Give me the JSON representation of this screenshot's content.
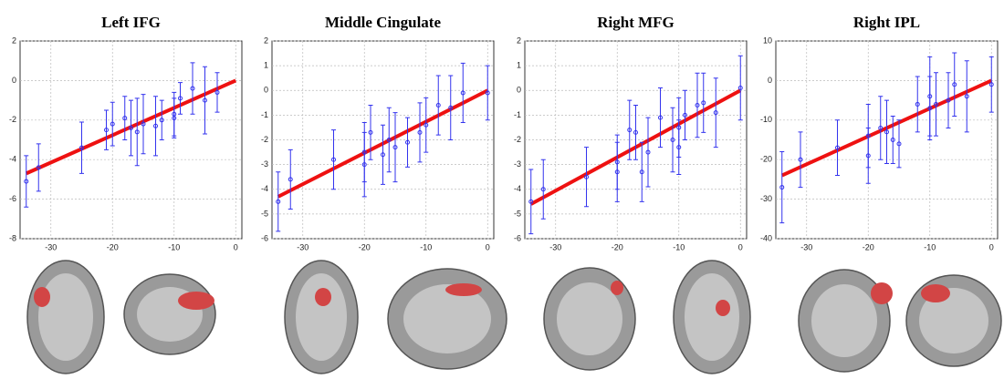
{
  "chart_data": [
    {
      "type": "scatter",
      "title": "Left IFG",
      "xlim": [
        -35,
        1
      ],
      "xticks": [
        -30,
        -20,
        -10,
        0
      ],
      "ylim": [
        -8,
        2
      ],
      "yticks": [
        -8,
        -6,
        -4,
        -2,
        0,
        2
      ],
      "grid": true,
      "color": "#3333ee",
      "fit_color": "#ee1111",
      "x": [
        -34,
        -32,
        -25,
        -21,
        -20,
        -18,
        -17,
        -16,
        -15,
        -13,
        -12,
        -10,
        -10,
        -9,
        -7,
        -5,
        -3
      ],
      "values": [
        -5.1,
        -4.4,
        -3.4,
        -2.5,
        -2.2,
        -1.9,
        -2.4,
        -2.6,
        -2.2,
        -2.3,
        -2.0,
        -1.7,
        -1.9,
        -0.9,
        -0.4,
        -1.0,
        -0.6
      ],
      "errors": [
        1.3,
        1.2,
        1.3,
        1.0,
        1.1,
        1.1,
        1.4,
        1.7,
        1.5,
        1.5,
        1.0,
        1.1,
        1.0,
        0.8,
        1.3,
        1.7,
        1.0
      ],
      "fit_x": [
        -34,
        0
      ],
      "fit_values": [
        -4.7,
        0
      ]
    },
    {
      "type": "scatter",
      "title": "Middle Cingulate",
      "xlim": [
        -35,
        1
      ],
      "xticks": [
        -30,
        -20,
        -10,
        0
      ],
      "ylim": [
        -6,
        2
      ],
      "yticks": [
        -6,
        -5,
        -4,
        -3,
        -2,
        -1,
        0,
        1,
        2
      ],
      "grid": true,
      "color": "#3333ee",
      "fit_color": "#ee1111",
      "x": [
        -34,
        -32,
        -25,
        -20,
        -20,
        -19,
        -17,
        -16,
        -15,
        -13,
        -11,
        -10,
        -8,
        -6,
        -4,
        0
      ],
      "values": [
        -4.5,
        -3.6,
        -2.8,
        -3.0,
        -2.5,
        -1.7,
        -2.6,
        -2.0,
        -2.3,
        -2.1,
        -1.7,
        -1.4,
        -0.6,
        -0.7,
        -0.1,
        -0.1
      ],
      "errors": [
        1.2,
        1.2,
        1.2,
        1.3,
        1.2,
        1.1,
        1.2,
        1.3,
        1.4,
        1.0,
        1.2,
        1.1,
        1.2,
        1.3,
        1.2,
        1.1
      ],
      "fit_x": [
        -34,
        0
      ],
      "fit_values": [
        -4.3,
        0
      ]
    },
    {
      "type": "scatter",
      "title": "Right MFG",
      "xlim": [
        -35,
        1
      ],
      "xticks": [
        -30,
        -20,
        -10,
        0
      ],
      "ylim": [
        -6,
        2
      ],
      "yticks": [
        -6,
        -5,
        -4,
        -3,
        -2,
        -1,
        0,
        1,
        2
      ],
      "grid": true,
      "color": "#3333ee",
      "fit_color": "#ee1111",
      "x": [
        -34,
        -32,
        -25,
        -20,
        -20,
        -18,
        -17,
        -16,
        -15,
        -13,
        -11,
        -10,
        -10,
        -9,
        -7,
        -6,
        -4,
        0
      ],
      "values": [
        -4.5,
        -4.0,
        -3.5,
        -2.9,
        -3.3,
        -1.6,
        -1.7,
        -3.3,
        -2.5,
        -1.1,
        -2.0,
        -1.5,
        -2.3,
        -1.0,
        -0.6,
        -0.5,
        -0.9,
        0.1
      ],
      "errors": [
        1.3,
        1.2,
        1.2,
        1.1,
        1.2,
        1.2,
        1.1,
        1.2,
        1.4,
        1.2,
        1.3,
        1.2,
        1.1,
        1.0,
        1.3,
        1.2,
        1.4,
        1.3
      ],
      "fit_x": [
        -34,
        0
      ],
      "fit_values": [
        -4.6,
        0
      ]
    },
    {
      "type": "scatter",
      "title": "Right IPL",
      "xlim": [
        -35,
        1
      ],
      "xticks": [
        -30,
        -20,
        -10,
        0
      ],
      "ylim": [
        -40,
        10
      ],
      "yticks": [
        -40,
        -30,
        -20,
        -10,
        0,
        10
      ],
      "grid": true,
      "color": "#3333ee",
      "fit_color": "#ee1111",
      "x": [
        -34,
        -31,
        -25,
        -20,
        -20,
        -18,
        -17,
        -16,
        -15,
        -12,
        -10,
        -10,
        -9,
        -7,
        -6,
        -4,
        0
      ],
      "values": [
        -27,
        -20,
        -17,
        -14,
        -19,
        -12,
        -13,
        -15,
        -16,
        -6,
        -7,
        -4,
        -6,
        -5,
        -1,
        -4,
        -1
      ],
      "errors": [
        9,
        7,
        7,
        8,
        7,
        8,
        8,
        6,
        6,
        7,
        8,
        10,
        8,
        7,
        8,
        9,
        7
      ],
      "fit_x": [
        -34,
        0
      ],
      "fit_values": [
        -24,
        0
      ]
    }
  ]
}
